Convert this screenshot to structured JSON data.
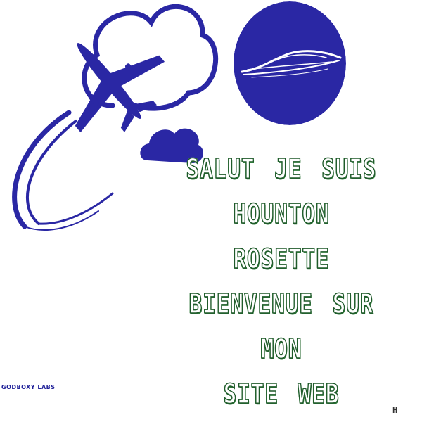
{
  "headline": {
    "line1": "SALUT  JE  SUIS",
    "line2": "HOUNTON  ROSETTE",
    "line3": "BIENVENUE  SUR  MON",
    "line4": "SITE  WEB"
  },
  "footer": {
    "left_text": "GODBOXY LABS",
    "right_text": "H"
  },
  "colors": {
    "brand_blue": "#2a27a4",
    "text_green": "#2f7a3a",
    "background": "#ffffff"
  },
  "icons": [
    "cloud-icon",
    "airplane-icon",
    "car-icon",
    "small-cloud-icon"
  ]
}
